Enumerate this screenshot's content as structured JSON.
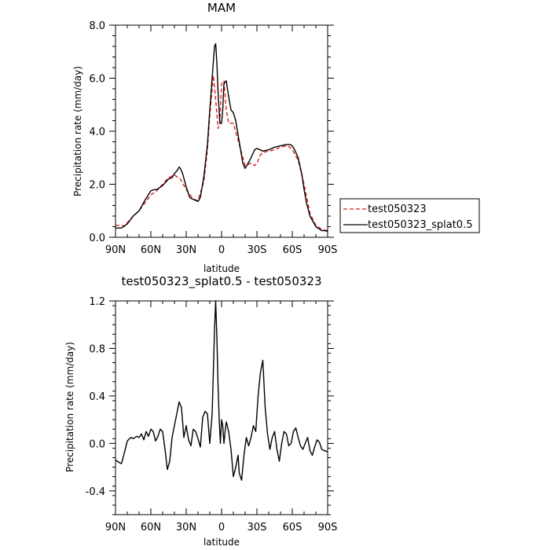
{
  "chart_data": [
    {
      "type": "line",
      "title": "MAM",
      "xlabel": "latitude",
      "ylabel": "Precipitation rate  (mm/day)",
      "xlim": [
        90,
        -90
      ],
      "ylim": [
        0,
        8
      ],
      "x_ticks": [
        {
          "value": 90,
          "label": "90N"
        },
        {
          "value": 60,
          "label": "60N"
        },
        {
          "value": 30,
          "label": "30N"
        },
        {
          "value": 0,
          "label": "0"
        },
        {
          "value": -30,
          "label": "30S"
        },
        {
          "value": -60,
          "label": "60S"
        },
        {
          "value": -90,
          "label": "90S"
        }
      ],
      "y_ticks": [
        {
          "value": 0,
          "label": "0.0"
        },
        {
          "value": 2,
          "label": "2.0"
        },
        {
          "value": 4,
          "label": "4.0"
        },
        {
          "value": 6,
          "label": "6.0"
        },
        {
          "value": 8,
          "label": "8.0"
        }
      ],
      "legend_position": "outside-right",
      "series": [
        {
          "name": "test050323",
          "color": "#e02020",
          "style": "dashed",
          "x": [
            90,
            85,
            82,
            80,
            75,
            70,
            65,
            60,
            55,
            50,
            45,
            40,
            37,
            35,
            30,
            25,
            22,
            20,
            15,
            12,
            10,
            7,
            5,
            3,
            1.5,
            0,
            -2,
            -4,
            -6,
            -10,
            -15,
            -20,
            -25,
            -28,
            -30,
            -33,
            -35,
            -40,
            -45,
            -50,
            -55,
            -58,
            -60,
            -65,
            -70,
            -75,
            -80,
            -85,
            -90
          ],
          "y": [
            0.45,
            0.45,
            0.42,
            0.55,
            0.8,
            1.0,
            1.3,
            1.6,
            1.75,
            2.0,
            2.25,
            2.35,
            2.25,
            2.2,
            1.8,
            1.5,
            1.4,
            1.4,
            2.1,
            3.3,
            4.6,
            6.1,
            5.2,
            4.1,
            4.3,
            5.8,
            5.9,
            4.8,
            4.3,
            4.3,
            3.5,
            2.7,
            2.8,
            2.7,
            2.8,
            3.1,
            3.2,
            3.25,
            3.3,
            3.4,
            3.45,
            3.4,
            3.3,
            2.9,
            2.0,
            0.9,
            0.45,
            0.3,
            0.25
          ]
        },
        {
          "name": "test050323_splat0.5",
          "color": "#000000",
          "style": "solid",
          "x": [
            90,
            85,
            80,
            75,
            70,
            65,
            60,
            57,
            55,
            50,
            45,
            42,
            40,
            38,
            36,
            35,
            33,
            30,
            27,
            25,
            20,
            18,
            15,
            12,
            10,
            8,
            6,
            5,
            4,
            3,
            1.5,
            0,
            -1,
            -2,
            -4,
            -6,
            -8,
            -10,
            -12,
            -15,
            -18,
            -20,
            -22,
            -25,
            -28,
            -30,
            -35,
            -40,
            -45,
            -50,
            -55,
            -58,
            -60,
            -62,
            -65,
            -68,
            -70,
            -72,
            -75,
            -80,
            -85,
            -88,
            -90
          ],
          "y": [
            0.35,
            0.35,
            0.5,
            0.8,
            1.0,
            1.4,
            1.75,
            1.8,
            1.8,
            1.95,
            2.2,
            2.25,
            2.4,
            2.5,
            2.65,
            2.6,
            2.4,
            1.9,
            1.5,
            1.45,
            1.35,
            1.5,
            2.3,
            3.5,
            4.8,
            6.0,
            7.2,
            7.3,
            6.6,
            5.5,
            4.3,
            4.3,
            4.8,
            5.8,
            5.9,
            5.3,
            4.8,
            4.7,
            4.4,
            3.6,
            2.8,
            2.6,
            2.75,
            3.0,
            3.3,
            3.35,
            3.25,
            3.3,
            3.4,
            3.45,
            3.5,
            3.5,
            3.45,
            3.3,
            3.0,
            2.4,
            1.8,
            1.3,
            0.8,
            0.4,
            0.25,
            0.25,
            0.22
          ]
        }
      ]
    },
    {
      "type": "line",
      "title": "test050323_splat0.5 - test050323",
      "xlabel": "latitude",
      "ylabel": "Precipitation rate  (mm/day)",
      "xlim": [
        90,
        -90
      ],
      "ylim": [
        -0.6,
        1.2
      ],
      "x_ticks": [
        {
          "value": 90,
          "label": "90N"
        },
        {
          "value": 60,
          "label": "60N"
        },
        {
          "value": 30,
          "label": "30N"
        },
        {
          "value": 0,
          "label": "0"
        },
        {
          "value": -30,
          "label": "30S"
        },
        {
          "value": -60,
          "label": "60S"
        },
        {
          "value": -90,
          "label": "90S"
        }
      ],
      "y_ticks": [
        {
          "value": -0.4,
          "label": "-0.4"
        },
        {
          "value": 0,
          "label": "0.0"
        },
        {
          "value": 0.4,
          "label": "0.4"
        },
        {
          "value": 0.8,
          "label": "0.8"
        },
        {
          "value": 1.2,
          "label": "1.2"
        }
      ],
      "series": [
        {
          "color": "#000000",
          "style": "solid",
          "x": [
            90,
            87,
            85,
            83,
            80,
            77,
            75,
            72,
            70,
            68,
            66,
            64,
            62,
            60,
            58,
            56,
            54,
            52,
            50,
            48,
            46,
            44,
            42,
            40,
            38,
            36,
            34,
            32,
            30,
            28,
            26,
            24,
            22,
            20,
            18,
            16,
            14,
            12,
            10,
            8,
            7,
            6,
            5,
            4,
            3,
            2,
            1,
            0,
            -1,
            -2,
            -3,
            -4,
            -6,
            -8,
            -10,
            -12,
            -14,
            -15,
            -17,
            -19,
            -21,
            -23,
            -25,
            -27,
            -29,
            -31,
            -33,
            -35,
            -37,
            -39,
            -41,
            -43,
            -45,
            -47,
            -49,
            -51,
            -53,
            -55,
            -57,
            -59,
            -61,
            -63,
            -65,
            -67,
            -69,
            -71,
            -73,
            -75,
            -77,
            -79,
            -81,
            -83,
            -85,
            -87,
            -90
          ],
          "y": [
            -0.14,
            -0.16,
            -0.17,
            -0.1,
            0.02,
            0.05,
            0.04,
            0.06,
            0.05,
            0.08,
            0.03,
            0.1,
            0.06,
            0.12,
            0.1,
            0.02,
            0.06,
            0.12,
            0.1,
            -0.05,
            -0.22,
            -0.15,
            0.05,
            0.15,
            0.25,
            0.35,
            0.3,
            0.05,
            0.15,
            0.03,
            -0.02,
            0.12,
            0.1,
            0.04,
            -0.03,
            0.22,
            0.27,
            0.25,
            0.0,
            0.25,
            0.6,
            0.95,
            1.2,
            0.9,
            0.5,
            0.2,
            0.0,
            0.2,
            0.15,
            0.0,
            0.1,
            0.18,
            0.1,
            -0.05,
            -0.28,
            -0.2,
            -0.1,
            -0.25,
            -0.31,
            -0.1,
            0.05,
            -0.02,
            0.05,
            0.15,
            0.1,
            0.4,
            0.6,
            0.7,
            0.3,
            0.08,
            -0.05,
            0.05,
            0.1,
            -0.05,
            -0.15,
            0.0,
            0.1,
            0.08,
            -0.02,
            0.0,
            0.1,
            0.13,
            0.05,
            -0.02,
            -0.05,
            0.0,
            0.05,
            -0.06,
            -0.1,
            -0.03,
            0.03,
            0.01,
            -0.05,
            -0.06,
            -0.07
          ]
        }
      ]
    }
  ]
}
